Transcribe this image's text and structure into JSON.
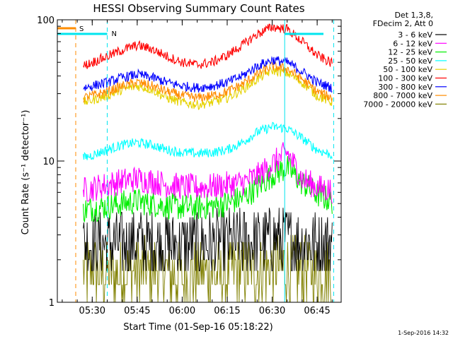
{
  "chart_data": {
    "type": "line",
    "title": "HESSI Observing Summary Count Rates",
    "xlabel": "Start Time (01-Sep-16 05:18:22)",
    "ylabel": "Count Rate (s⁻¹ detector⁻¹)",
    "y_scale": "log",
    "ylim": [
      1,
      100
    ],
    "xlim": [
      "05:18:22",
      "06:53:00"
    ],
    "x_ticks": [
      "05:30",
      "05:45",
      "06:00",
      "06:15",
      "06:30",
      "06:45"
    ],
    "y_ticks": [
      "1",
      "10",
      "100"
    ],
    "grid": false,
    "legend_position": "outside-right",
    "legend_header": [
      "Det 1,3,8,",
      "FDecim 2, Att 0"
    ],
    "footer_stamp": "1-Sep-2016 14:32",
    "annotations": [
      {
        "label": "S",
        "kind": "SAA",
        "time": "05:24:30",
        "color": "#ff8c00"
      },
      {
        "label": "N",
        "kind": "Night",
        "time": "05:35:00",
        "color": "#00e5ee"
      }
    ],
    "vertical_markers": [
      {
        "time": "05:24:30",
        "color": "#ff8c00",
        "style": "dashed"
      },
      {
        "time": "05:35:00",
        "color": "#00e5ee",
        "style": "dashed"
      },
      {
        "time": "06:34:10",
        "color": "#00e5ee",
        "style": "solid"
      },
      {
        "time": "06:50:30",
        "color": "#00e5ee",
        "style": "dashed"
      }
    ],
    "x": [
      "05:27",
      "05:30",
      "05:35",
      "05:40",
      "05:45",
      "05:50",
      "05:55",
      "06:00",
      "06:05",
      "06:10",
      "06:15",
      "06:20",
      "06:25",
      "06:30",
      "06:35",
      "06:40",
      "06:45",
      "06:50"
    ],
    "series": [
      {
        "name": "3 - 6 keV",
        "color": "#000000",
        "values": [
          2.6,
          2.6,
          2.6,
          2.6,
          2.7,
          2.6,
          2.6,
          2.6,
          2.6,
          2.6,
          2.7,
          2.7,
          2.7,
          2.8,
          2.8,
          2.7,
          2.6,
          2.6
        ]
      },
      {
        "name": "6 - 12 keV",
        "color": "#ff00ff",
        "values": [
          6.2,
          6.4,
          6.8,
          7.2,
          7.5,
          7.2,
          6.8,
          6.6,
          6.5,
          6.6,
          6.8,
          7.0,
          7.8,
          9.5,
          11.5,
          7.5,
          6.5,
          6.2
        ]
      },
      {
        "name": "12 - 25 keV",
        "color": "#00ee00",
        "values": [
          4.5,
          4.6,
          4.8,
          5.0,
          5.2,
          5.0,
          4.8,
          4.7,
          4.7,
          4.8,
          5.0,
          5.5,
          6.5,
          8.0,
          9.0,
          7.0,
          5.8,
          5.2
        ]
      },
      {
        "name": "25 - 50 keV",
        "color": "#00ffff",
        "values": [
          10.5,
          11.0,
          12.0,
          13.0,
          13.5,
          13.0,
          12.0,
          11.5,
          11.3,
          11.5,
          12.0,
          13.5,
          16.0,
          17.5,
          17.0,
          14.5,
          12.0,
          11.0
        ]
      },
      {
        "name": "50 - 100 keV",
        "color": "#e6d200",
        "values": [
          26,
          27,
          29,
          32,
          34,
          32,
          28,
          26,
          25,
          26,
          28,
          32,
          38,
          44,
          42,
          36,
          29,
          26
        ]
      },
      {
        "name": "100 - 300 keV",
        "color": "#ff0000",
        "values": [
          47,
          50,
          55,
          61,
          66,
          62,
          55,
          50,
          48,
          50,
          56,
          66,
          79,
          89,
          86,
          70,
          56,
          49
        ]
      },
      {
        "name": "300 - 800 keV",
        "color": "#0000ff",
        "values": [
          33,
          34,
          36,
          39,
          41,
          39,
          36,
          34,
          33,
          34,
          36,
          40,
          47,
          52,
          50,
          43,
          36,
          33
        ]
      },
      {
        "name": "800 - 7000 keV",
        "color": "#ff8c00",
        "values": [
          28,
          29,
          31,
          34,
          36,
          34,
          31,
          29,
          28,
          29,
          31,
          35,
          41,
          47,
          45,
          38,
          31,
          28
        ]
      },
      {
        "name": "7000 - 20000 keV",
        "color": "#808000",
        "values": [
          1.6,
          1.7,
          1.6,
          1.6,
          1.6,
          1.7,
          1.6,
          1.5,
          1.6,
          1.6,
          1.6,
          1.7,
          1.7,
          1.8,
          1.8,
          1.7,
          1.6,
          1.6
        ]
      }
    ]
  }
}
